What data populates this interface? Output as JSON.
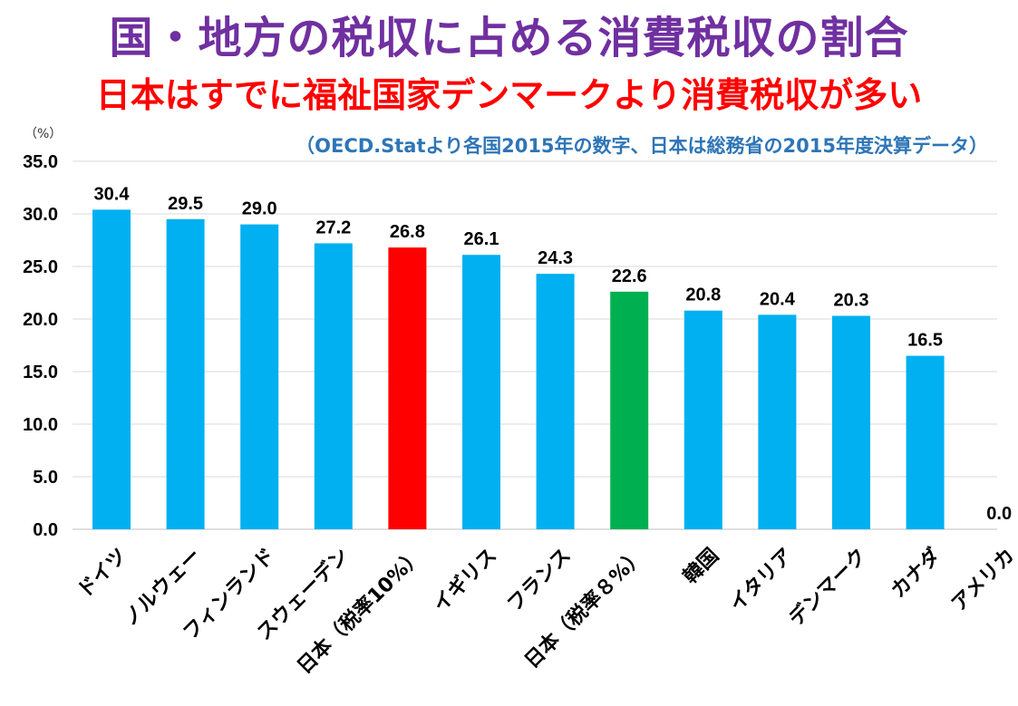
{
  "title": "国・地方の税収に占める消費税収の割合",
  "subtitle": "日本はすでに福祉国家デンマークより消費税収が多い",
  "unit": "（%）",
  "note": "（OECD.Statより各国2015年の数字、日本は総務省の2015年度決算データ）",
  "colors": {
    "title": "#7030a0",
    "subtitle": "#ff0000",
    "note": "#2e75b6",
    "bar_default": "#00b0f0",
    "bar_japan_10": "#ff0000",
    "bar_japan_8": "#00b050"
  },
  "chart_data": {
    "type": "bar",
    "title": "国・地方の税収に占める消費税収の割合",
    "ylabel": "（%）",
    "ylim": [
      0,
      35
    ],
    "yticks": [
      "0.0",
      "5.0",
      "10.0",
      "15.0",
      "20.0",
      "25.0",
      "30.0",
      "35.0"
    ],
    "grid": true,
    "categories": [
      "ドイツ",
      "ノルウェー",
      "フィンランド",
      "スウェーデン",
      "日本（税率10%）",
      "イギリス",
      "フランス",
      "日本（税率８%）",
      "韓国",
      "イタリア",
      "デンマーク",
      "カナダ",
      "アメリカ"
    ],
    "values": [
      30.4,
      29.5,
      29.0,
      27.2,
      26.8,
      26.1,
      24.3,
      22.6,
      20.8,
      20.4,
      20.3,
      16.5,
      0.0
    ],
    "value_labels": [
      "30.4",
      "29.5",
      "29.0",
      "27.2",
      "26.8",
      "26.1",
      "24.3",
      "22.6",
      "20.8",
      "20.4",
      "20.3",
      "16.5",
      "0.0"
    ],
    "bar_colors": [
      "#00b0f0",
      "#00b0f0",
      "#00b0f0",
      "#00b0f0",
      "#ff0000",
      "#00b0f0",
      "#00b0f0",
      "#00b050",
      "#00b0f0",
      "#00b0f0",
      "#00b0f0",
      "#00b0f0",
      "#00b0f0"
    ]
  }
}
